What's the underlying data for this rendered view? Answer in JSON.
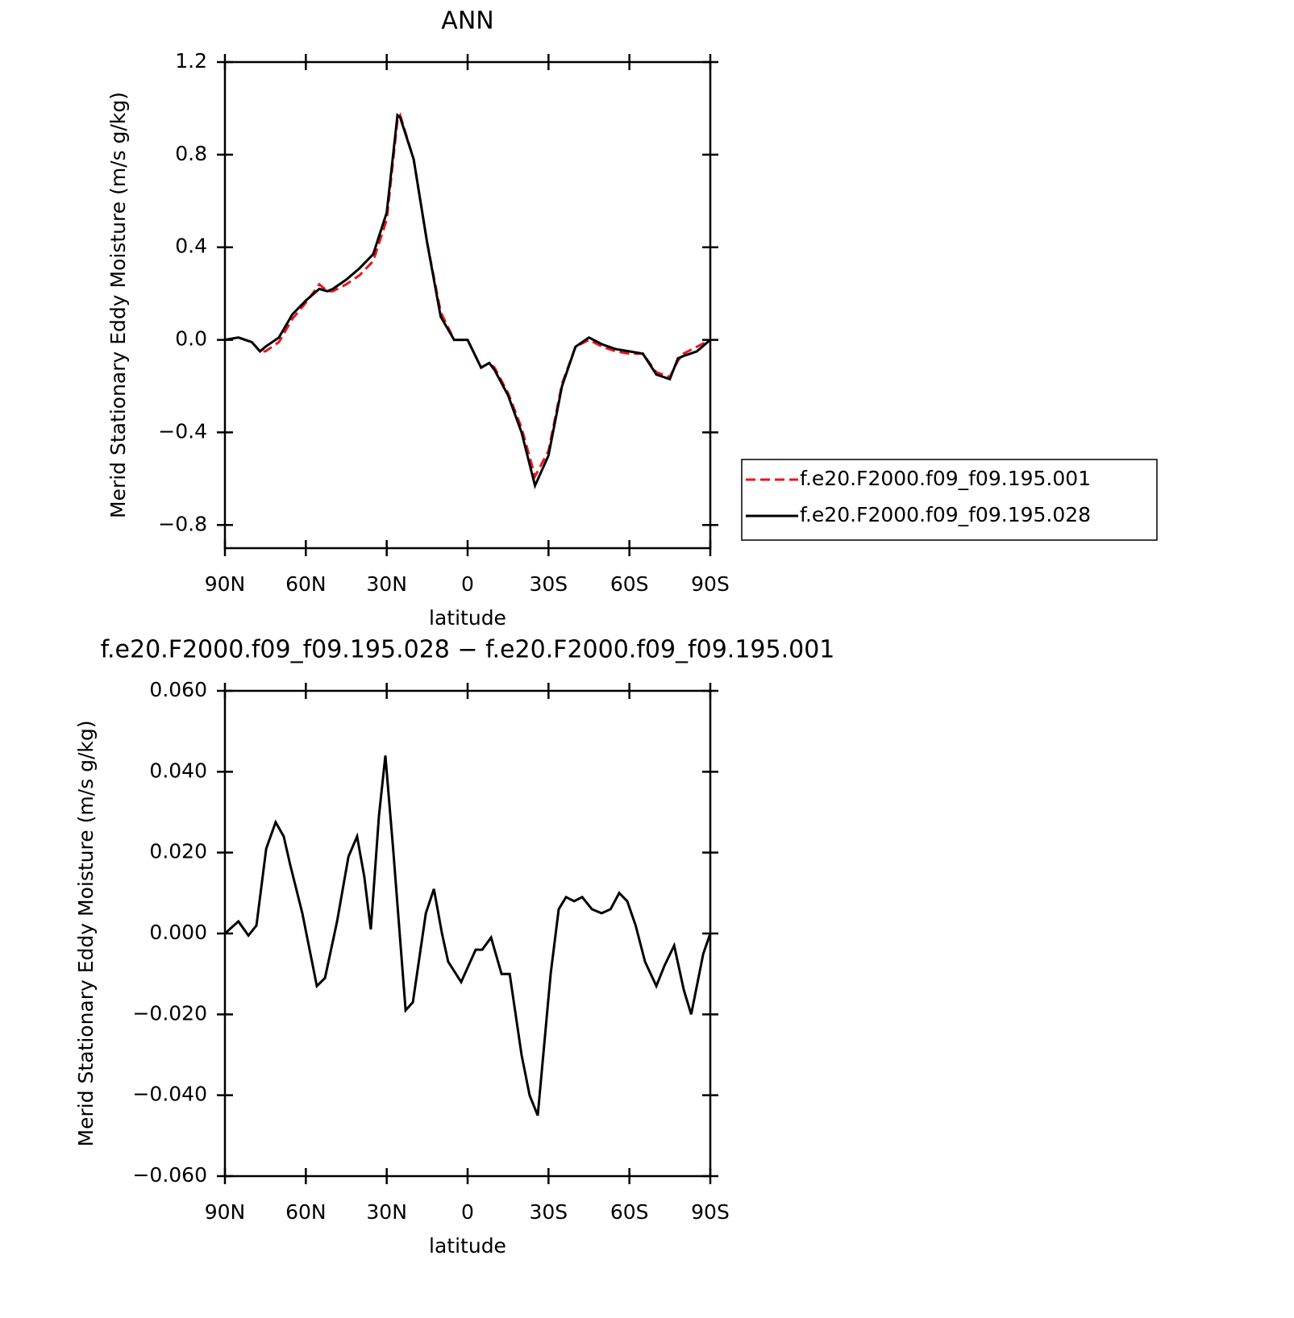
{
  "chart_data": [
    {
      "type": "line",
      "title": "ANN",
      "x_label": "latitude",
      "y_label": "Merid Stationary Eddy Moisture (m/s g/kg)",
      "xlim": [
        90,
        -90
      ],
      "xticks": [
        {
          "value": 90,
          "label": "90N"
        },
        {
          "value": 60,
          "label": "60N"
        },
        {
          "value": 30,
          "label": "30N"
        },
        0,
        {
          "value": -30,
          "label": "30S"
        },
        {
          "value": -60,
          "label": "60S"
        },
        {
          "value": -90,
          "label": "90S"
        }
      ],
      "ylim": [
        -0.9,
        1.2
      ],
      "yticks": [
        {
          "value": -0.8,
          "label": "−0.8"
        },
        {
          "value": -0.4,
          "label": "−0.4"
        },
        {
          "value": 0,
          "label": "0.0"
        },
        0.4,
        0.8,
        1.2
      ],
      "legend": "right",
      "x": [
        90,
        85,
        80,
        77,
        75,
        70,
        65,
        60,
        55,
        52,
        50,
        45,
        40,
        35,
        30,
        26,
        25,
        20,
        15,
        10,
        5,
        0,
        -5,
        -8,
        -10,
        -15,
        -20,
        -25,
        -30,
        -35,
        -40,
        -45,
        -50,
        -55,
        -60,
        -65,
        -70,
        -75,
        -78,
        -80,
        -85,
        -90
      ],
      "series": [
        {
          "name": "f.e20.F2000.f09_f09.195.001",
          "color": "#e8161b",
          "dash": true,
          "values": [
            0,
            0.01,
            -0.01,
            -0.05,
            -0.05,
            -0.01,
            0.09,
            0.16,
            0.24,
            0.21,
            0.21,
            0.24,
            0.28,
            0.34,
            0.52,
            0.95,
            0.97,
            0.78,
            0.42,
            0.12,
            0.0,
            0.0,
            -0.12,
            -0.1,
            -0.12,
            -0.23,
            -0.38,
            -0.59,
            -0.48,
            -0.19,
            -0.03,
            0.0,
            -0.03,
            -0.05,
            -0.06,
            -0.06,
            -0.14,
            -0.16,
            -0.09,
            -0.06,
            -0.03,
            0
          ]
        },
        {
          "name": "f.e20.F2000.f09_f09.195.028",
          "color": "#000000",
          "dash": false,
          "values": [
            0,
            0.01,
            -0.01,
            -0.05,
            -0.03,
            0.01,
            0.11,
            0.17,
            0.22,
            0.21,
            0.22,
            0.26,
            0.31,
            0.37,
            0.55,
            0.97,
            0.96,
            0.78,
            0.42,
            0.1,
            0.0,
            0.0,
            -0.12,
            -0.1,
            -0.13,
            -0.24,
            -0.4,
            -0.63,
            -0.5,
            -0.2,
            -0.03,
            0.01,
            -0.02,
            -0.04,
            -0.05,
            -0.06,
            -0.15,
            -0.17,
            -0.08,
            -0.07,
            -0.05,
            0
          ]
        }
      ]
    },
    {
      "type": "line",
      "title": "f.e20.F2000.f09_f09.195.028 − f.e20.F2000.f09_f09.195.001",
      "x_label": "latitude",
      "y_label": "Merid Stationary Eddy Moisture (m/s g/kg)",
      "xlim": [
        90,
        -90
      ],
      "xticks": [
        {
          "value": 90,
          "label": "90N"
        },
        {
          "value": 60,
          "label": "60N"
        },
        {
          "value": 30,
          "label": "30N"
        },
        0,
        {
          "value": -30,
          "label": "30S"
        },
        {
          "value": -60,
          "label": "60S"
        },
        {
          "value": -90,
          "label": "90S"
        }
      ],
      "ylim": [
        -0.06,
        0.06
      ],
      "yticks": [
        {
          "value": -0.06,
          "label": "−0.060"
        },
        {
          "value": -0.04,
          "label": "−0.040"
        },
        {
          "value": -0.02,
          "label": "−0.020"
        },
        {
          "value": 0,
          "label": "0.000"
        },
        {
          "value": 0.02,
          "label": "0.020"
        },
        {
          "value": 0.04,
          "label": "0.040"
        },
        {
          "value": 0.06,
          "label": "0.060"
        }
      ],
      "x": [
        90,
        85,
        81.3,
        78.3,
        74.7,
        71.2,
        68.2,
        65.8,
        61.3,
        55.9,
        52.9,
        48.4,
        44.2,
        41,
        38.3,
        35.9,
        32.9,
        30.5,
        27.5,
        23,
        20.3,
        15.5,
        12.5,
        9.5,
        7.2,
        2.4,
        -3,
        -5.4,
        -8.7,
        -12.6,
        -15.6,
        -20,
        -23,
        -26,
        -30.8,
        -33.8,
        -36.5,
        -39.5,
        -42.5,
        -46.1,
        -49.7,
        -53,
        -56.2,
        -59.2,
        -62.3,
        -65.8,
        -70,
        -73,
        -76.6,
        -80.2,
        -82.9,
        -87.4,
        -90
      ],
      "series": [
        {
          "color": "#000000",
          "values": [
            0,
            0.003,
            -0.0005,
            0.002,
            0.021,
            0.0275,
            0.024,
            0.017,
            0.005,
            -0.013,
            -0.011,
            0.003,
            0.019,
            0.024,
            0.014,
            0.001,
            0.029,
            0.044,
            0.02,
            -0.019,
            -0.017,
            0.005,
            0.011,
            0,
            -0.007,
            -0.012,
            -0.004,
            -0.004,
            -0.001,
            -0.01,
            -0.01,
            -0.03,
            -0.04,
            -0.045,
            -0.01,
            0.006,
            0.009,
            0.008,
            0.009,
            0.006,
            0.005,
            0.006,
            0.01,
            0.008,
            0.002,
            -0.007,
            -0.013,
            -0.008,
            -0.003,
            -0.014,
            -0.02,
            -0.005,
            0
          ]
        }
      ]
    }
  ]
}
